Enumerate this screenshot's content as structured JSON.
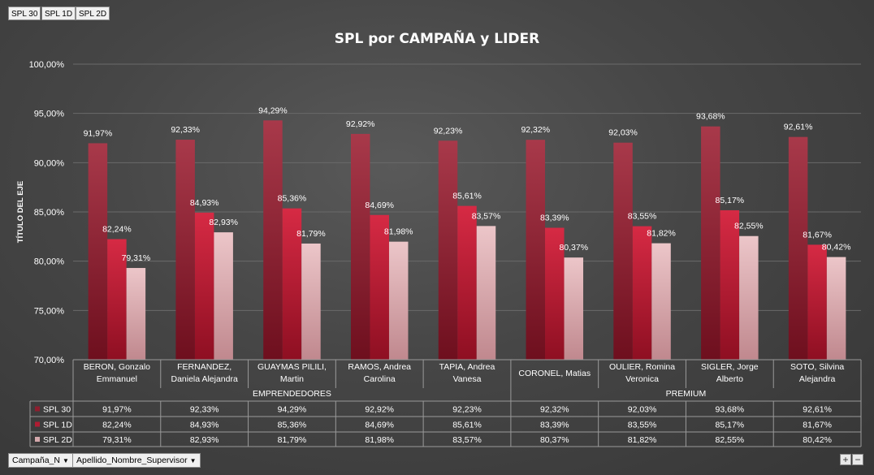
{
  "field_buttons": [
    "SPL 30",
    "SPL 1D",
    "SPL 2D"
  ],
  "axis_buttons": [
    "Campaña_N",
    "Apellido_Nombre_Supervisor"
  ],
  "zoom": {
    "plus": "+",
    "minus": "−"
  },
  "colors": {
    "spl30": "#8e1e2e",
    "spl1d": "#b01c32",
    "spl2d": "#d4a8ac",
    "grid": "#6a6a6a",
    "text": "#ffffff",
    "table_line": "#9a9a9a"
  },
  "chart_data": {
    "type": "bar",
    "title": "SPL por CAMPAÑA y LIDER",
    "ylabel": "TÍTULO DEL EJE",
    "xlabel": "",
    "ylim": [
      70,
      100
    ],
    "yticks": [
      "70,00%",
      "75,00%",
      "80,00%",
      "85,00%",
      "90,00%",
      "95,00%",
      "100,00%"
    ],
    "ytick_values": [
      70,
      75,
      80,
      85,
      90,
      95,
      100
    ],
    "groups": [
      {
        "name": "EMPRENDEDORES",
        "count": 5
      },
      {
        "name": "PREMIUM",
        "count": 4
      }
    ],
    "categories": [
      [
        "BERON, Gonzalo",
        "Emmanuel"
      ],
      [
        "FERNANDEZ,",
        "Daniela Alejandra"
      ],
      [
        "GUAYMAS PILILI,",
        "Martin"
      ],
      [
        "RAMOS, Andrea",
        "Carolina"
      ],
      [
        "TAPIA, Andrea",
        "Vanesa"
      ],
      [
        "CORONEL, Matias"
      ],
      [
        "OULIER, Romina",
        "Veronica"
      ],
      [
        "SIGLER, Jorge",
        "Alberto"
      ],
      [
        "SOTO, Silvina",
        "Alejandra"
      ]
    ],
    "series": [
      {
        "name": "SPL 30",
        "values": [
          91.97,
          92.33,
          94.29,
          92.92,
          92.23,
          92.32,
          92.03,
          93.68,
          92.61
        ],
        "labels": [
          "91,97%",
          "92,33%",
          "94,29%",
          "92,92%",
          "92,23%",
          "92,32%",
          "92,03%",
          "93,68%",
          "92,61%"
        ]
      },
      {
        "name": "SPL 1D",
        "values": [
          82.24,
          84.93,
          85.36,
          84.69,
          85.61,
          83.39,
          83.55,
          85.17,
          81.67
        ],
        "labels": [
          "82,24%",
          "84,93%",
          "85,36%",
          "84,69%",
          "85,61%",
          "83,39%",
          "83,55%",
          "85,17%",
          "81,67%"
        ]
      },
      {
        "name": "SPL 2D",
        "values": [
          79.31,
          82.93,
          81.79,
          81.98,
          83.57,
          80.37,
          81.82,
          82.55,
          80.42
        ],
        "labels": [
          "79,31%",
          "82,93%",
          "81,79%",
          "81,98%",
          "83,57%",
          "80,37%",
          "81,82%",
          "82,55%",
          "80,42%"
        ]
      }
    ],
    "grid": true,
    "legend": "data-table"
  }
}
